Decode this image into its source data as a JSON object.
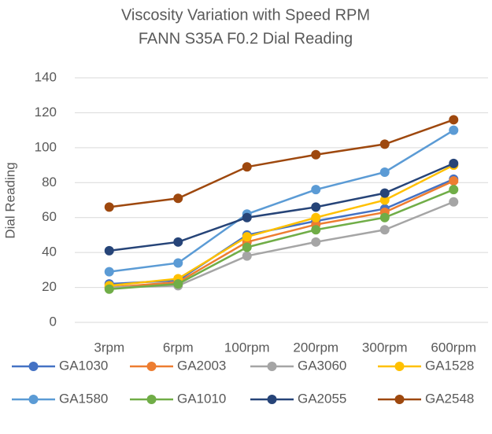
{
  "chart_data": {
    "type": "line",
    "title": "Viscosity Variation with Speed RPM",
    "subtitle": "FANN S35A F0.2 Dial Reading",
    "y_label": "Dial Reading",
    "categories": [
      "3rpm",
      "6rpm",
      "100rpm",
      "200rpm",
      "300rpm",
      "600rpm"
    ],
    "series": [
      {
        "name": "GA1030",
        "color": "#4472c4",
        "values": [
          22,
          24,
          50,
          58,
          65,
          82
        ]
      },
      {
        "name": "GA2003",
        "color": "#ed7d31",
        "values": [
          20,
          23,
          46,
          56,
          63,
          81
        ]
      },
      {
        "name": "GA3060",
        "color": "#a5a5a5",
        "values": [
          20,
          21,
          38,
          46,
          53,
          69
        ]
      },
      {
        "name": "GA1528",
        "color": "#ffc000",
        "values": [
          21,
          25,
          49,
          60,
          70,
          90
        ]
      },
      {
        "name": "GA1580",
        "color": "#5b9bd5",
        "values": [
          29,
          34,
          62,
          76,
          86,
          110
        ]
      },
      {
        "name": "GA1010",
        "color": "#70ad47",
        "values": [
          19,
          22,
          43,
          53,
          60,
          76
        ]
      },
      {
        "name": "GA2055",
        "color": "#264478",
        "values": [
          41,
          46,
          60,
          66,
          74,
          91
        ]
      },
      {
        "name": "GA2548",
        "color": "#9e480e",
        "values": [
          66,
          71,
          89,
          96,
          102,
          116
        ]
      }
    ],
    "ylim": [
      0,
      140
    ],
    "yticks": [
      0,
      20,
      40,
      60,
      80,
      100,
      120,
      140
    ],
    "grid": true,
    "legend": "bottom"
  }
}
